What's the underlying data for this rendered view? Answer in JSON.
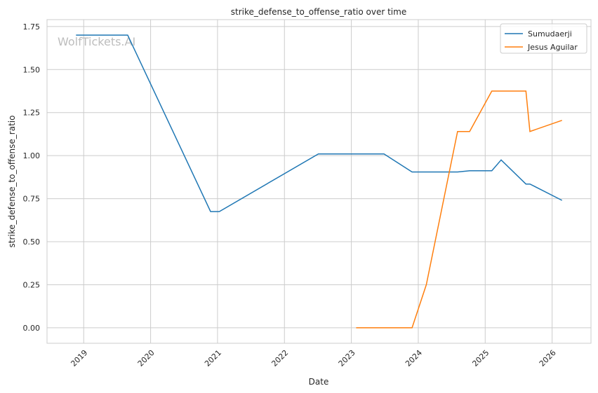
{
  "chart_data": {
    "type": "line",
    "title": "strike_defense_to_offense_ratio over time",
    "xlabel": "Date",
    "ylabel": "strike_defense_to_offense_ratio",
    "watermark": "WolfTickets.AI",
    "xlim": [
      "2018-06-15",
      "2026-08-01"
    ],
    "ylim": [
      -0.09,
      1.79
    ],
    "x_ticks": [
      "2019",
      "2020",
      "2021",
      "2022",
      "2023",
      "2024",
      "2025",
      "2026"
    ],
    "y_ticks": [
      0.0,
      0.25,
      0.5,
      0.75,
      1.0,
      1.25,
      1.5,
      1.75
    ],
    "y_tick_labels": [
      "0.00",
      "0.25",
      "0.50",
      "0.75",
      "1.00",
      "1.25",
      "1.50",
      "1.75"
    ],
    "grid": true,
    "legend_placement": "top-right",
    "series": [
      {
        "name": "Sumudaerji",
        "color": "#1f77b4",
        "x": [
          "2018-11-20",
          "2019-08-29",
          "2020-11-24",
          "2021-01-11",
          "2022-07-05",
          "2023-06-28",
          "2023-11-28",
          "2024-08-03",
          "2024-10-08",
          "2025-02-06",
          "2025-03-29",
          "2025-08-11",
          "2025-09-02",
          "2026-02-24"
        ],
        "y": [
          1.7,
          1.7,
          0.675,
          0.675,
          1.01,
          1.01,
          0.905,
          0.905,
          0.912,
          0.912,
          0.975,
          0.835,
          0.835,
          0.74
        ]
      },
      {
        "name": "Jesus Aguilar",
        "color": "#ff7f0e",
        "x": [
          "2023-01-27",
          "2023-11-28",
          "2024-02-14",
          "2024-08-03",
          "2024-10-08",
          "2025-02-06",
          "2025-08-11",
          "2025-09-02",
          "2026-02-24"
        ],
        "y": [
          0.0,
          0.0,
          0.25,
          1.14,
          1.14,
          1.375,
          1.375,
          1.14,
          1.205
        ]
      }
    ]
  }
}
